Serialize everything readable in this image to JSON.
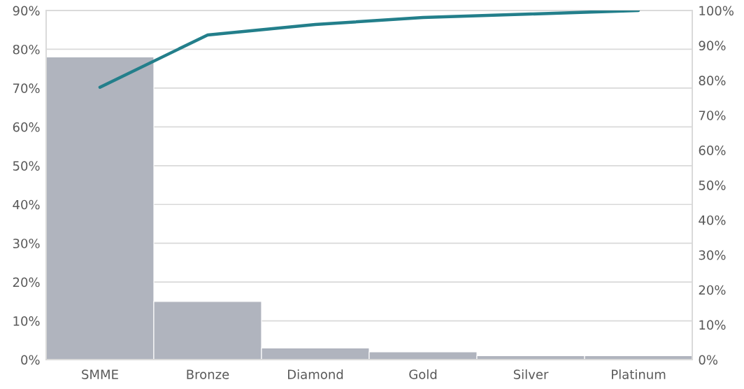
{
  "chart_data": {
    "type": "bar",
    "categories": [
      "SMME",
      "Bronze",
      "Diamond",
      "Gold",
      "Silver",
      "Platinum"
    ],
    "series": [
      {
        "color": "#b0b4be",
        "values": [
          78,
          15,
          3,
          2,
          1,
          1
        ]
      },
      {
        "type": "line",
        "axis": "y2",
        "color": "#237f8b",
        "values": [
          78,
          93,
          96,
          98,
          99,
          100
        ]
      }
    ],
    "ylim": [
      0,
      90
    ],
    "yticks": [
      {
        "value": 0,
        "label": "0%"
      },
      {
        "value": 10,
        "label": "10%"
      },
      {
        "value": 20,
        "label": "20%"
      },
      {
        "value": 30,
        "label": "30%"
      },
      {
        "value": 40,
        "label": "40%"
      },
      {
        "value": 50,
        "label": "50%"
      },
      {
        "value": 60,
        "label": "60%"
      },
      {
        "value": 70,
        "label": "70%"
      },
      {
        "value": 80,
        "label": "80%"
      },
      {
        "value": 90,
        "label": "90%"
      }
    ],
    "y2lim": [
      0,
      100
    ],
    "y2ticks": [
      {
        "value": 0,
        "label": "0%"
      },
      {
        "value": 10,
        "label": "10%"
      },
      {
        "value": 20,
        "label": "20%"
      },
      {
        "value": 30,
        "label": "30%"
      },
      {
        "value": 40,
        "label": "40%"
      },
      {
        "value": 50,
        "label": "50%"
      },
      {
        "value": 60,
        "label": "60%"
      },
      {
        "value": 70,
        "label": "70%"
      },
      {
        "value": 80,
        "label": "80%"
      },
      {
        "value": 90,
        "label": "90%"
      },
      {
        "value": 100,
        "label": "100%"
      }
    ],
    "grid": "y"
  }
}
